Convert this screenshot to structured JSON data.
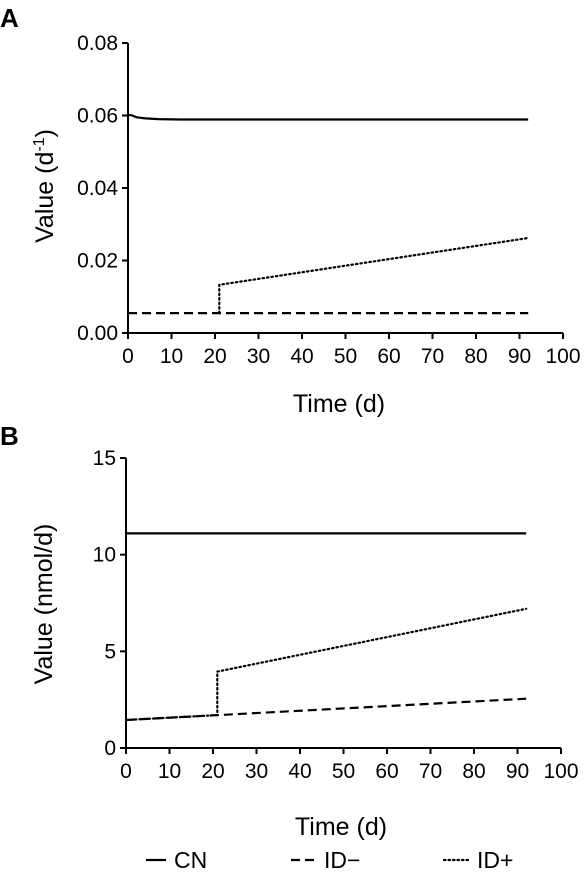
{
  "chart_data": [
    {
      "type": "line",
      "panel": "A",
      "xlabel": "Time (d)",
      "ylabel": "Value (d",
      "ylabel_superscript": "-1",
      "ylabel_close": ")",
      "xlim": [
        0,
        100
      ],
      "ylim": [
        0,
        0.08
      ],
      "xticks": [
        "0",
        "10",
        "20",
        "30",
        "40",
        "50",
        "60",
        "70",
        "80",
        "90",
        "100"
      ],
      "yticks": [
        "0.00",
        "0.02",
        "0.04",
        "0.06",
        "0.08"
      ],
      "grid": false,
      "series": [
        {
          "name": "CN",
          "style": "solid",
          "points": [
            [
              0,
              0.0602
            ],
            [
              1,
              0.06
            ],
            [
              2,
              0.0595
            ],
            [
              4,
              0.0592
            ],
            [
              7,
              0.059
            ],
            [
              12,
              0.0589
            ],
            [
              20,
              0.0589
            ],
            [
              50,
              0.0589
            ],
            [
              92,
              0.0589
            ]
          ]
        },
        {
          "name": "ID−",
          "style": "dashed",
          "points": [
            [
              0,
              0.0055
            ],
            [
              92,
              0.0055
            ]
          ]
        },
        {
          "name": "ID+",
          "style": "dotted",
          "points": [
            [
              21,
              0.0055
            ],
            [
              21,
              0.0133
            ],
            [
              92,
              0.0262
            ]
          ]
        }
      ]
    },
    {
      "type": "line",
      "panel": "B",
      "xlabel": "Time (d)",
      "ylabel": "Value (nmol/d)",
      "xlim": [
        0,
        100
      ],
      "ylim": [
        0,
        15
      ],
      "xticks": [
        "0",
        "10",
        "20",
        "30",
        "40",
        "50",
        "60",
        "70",
        "80",
        "90",
        "100"
      ],
      "yticks": [
        "0",
        "5",
        "10",
        "15"
      ],
      "grid": false,
      "series": [
        {
          "name": "CN",
          "style": "solid",
          "points": [
            [
              0,
              11.1
            ],
            [
              92,
              11.1
            ]
          ]
        },
        {
          "name": "ID−",
          "style": "dashed",
          "points": [
            [
              0,
              1.45
            ],
            [
              92,
              2.55
            ]
          ]
        },
        {
          "name": "ID+",
          "style": "dotted",
          "points": [
            [
              0,
              1.45
            ],
            [
              21,
              1.7
            ],
            [
              21,
              3.95
            ],
            [
              92,
              7.2
            ]
          ]
        }
      ]
    }
  ],
  "legend": {
    "position": "bottom",
    "items": [
      {
        "label": "CN",
        "style": "solid"
      },
      {
        "label": "ID−",
        "style": "dashed"
      },
      {
        "label": "ID+",
        "style": "dotted"
      }
    ]
  }
}
